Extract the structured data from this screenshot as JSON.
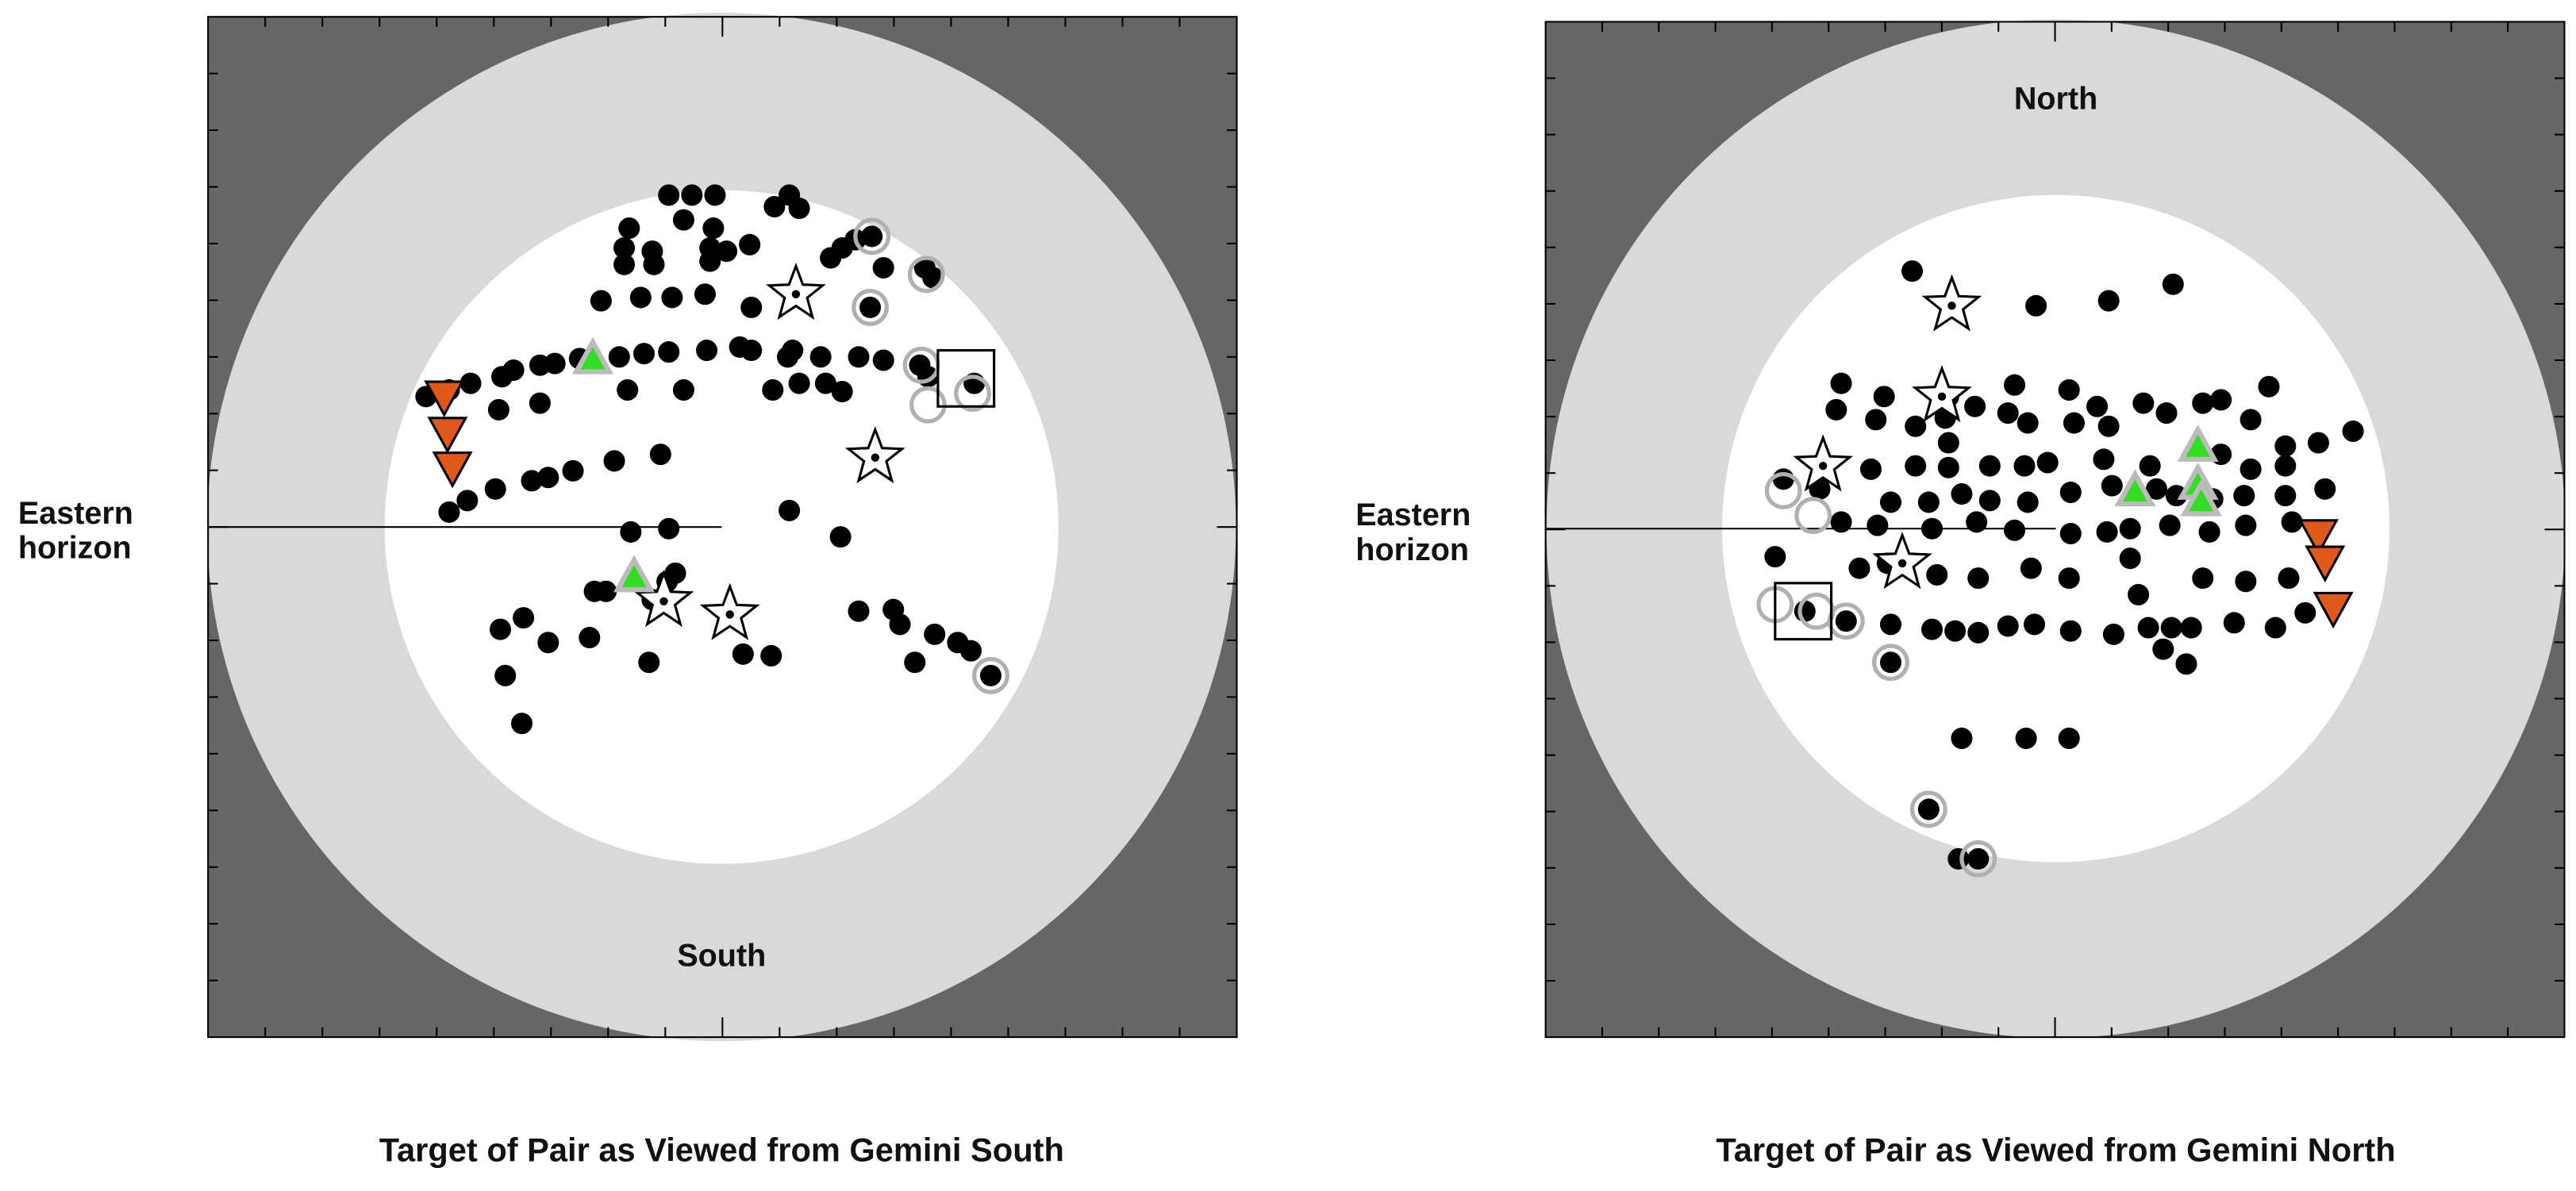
{
  "chart_data": [
    {
      "type": "scatter",
      "title": "Target of Pair as Viewed from Gemini South",
      "annotations": [
        "Eastern horizon",
        "South"
      ],
      "xlim": [
        -311,
        312
      ],
      "ylim": [
        -309,
        309
      ],
      "series": [
        {
          "marker": "dot",
          "color": "#000000",
          "x": [
            -32,
            -18,
            -4,
            41,
            47,
            -56,
            -23,
            -5,
            32,
            -59,
            -42,
            -7,
            3,
            17,
            -59,
            -41,
            -7,
            73,
            66,
            81,
            91,
            98,
            123,
            128,
            -73,
            -49,
            -30,
            -10,
            18,
            90,
            -179,
            -165,
            -152,
            -133,
            -126,
            -110,
            -101,
            -86,
            -62,
            -47,
            -32,
            -9,
            11,
            18,
            40,
            43,
            60,
            83,
            98,
            120,
            125,
            153,
            63,
            73,
            47,
            31,
            -23,
            -57,
            -135,
            -110,
            -165,
            -154,
            -137,
            -115,
            -105,
            -90,
            -65,
            -37,
            -55,
            -32,
            41,
            72,
            -77,
            -70,
            -42,
            -33,
            -28,
            -134,
            -120,
            -105,
            -80,
            -44,
            13,
            30,
            83,
            104,
            108,
            129,
            143,
            151,
            117,
            -131,
            -121,
            163
          ],
          "y": [
            201,
            201,
            201,
            201,
            193,
            181,
            186,
            181,
            194,
            169,
            167,
            169,
            167,
            171,
            159,
            159,
            161,
            169,
            163,
            174,
            176,
            157,
            157,
            151,
            137,
            139,
            139,
            141,
            133,
            133,
            79,
            83,
            87,
            91,
            95,
            98,
            99,
            102,
            103,
            105,
            106,
            107,
            109,
            107,
            103,
            107,
            103,
            103,
            101,
            98,
            91,
            87,
            87,
            82,
            87,
            83,
            83,
            83,
            71,
            75,
            9,
            16,
            23,
            28,
            30,
            34,
            40,
            44,
            -3,
            -1,
            10,
            -6,
            -39,
            -39,
            -44,
            -33,
            -28,
            -62,
            -55,
            -70,
            -67,
            -82,
            -77,
            -78,
            -51,
            -50,
            -59,
            -65,
            -70,
            -75,
            -82,
            -90,
            -119,
            -90
          ]
        },
        {
          "marker": "ring",
          "color": "#b0b0b0",
          "x": [
            91,
            90,
            124,
            121,
            125,
            152,
            163
          ],
          "y": [
            176,
            133,
            153,
            98,
            74,
            81,
            -90
          ]
        },
        {
          "marker": "star",
          "color": "#000000",
          "x": [
            45,
            93,
            -35,
            5
          ],
          "y": [
            141,
            42,
            -45,
            -53
          ]
        },
        {
          "marker": "triangle-up",
          "color": "#33dd22",
          "x": [
            -78,
            -53
          ],
          "y": [
            101,
            -31
          ]
        },
        {
          "marker": "triangle-down",
          "color": "#e0581a",
          "x": [
            -168,
            -166,
            -163
          ],
          "y": [
            79,
            57,
            36
          ]
        },
        {
          "marker": "square",
          "color": "#000000",
          "x": [
            148
          ],
          "y": [
            90
          ]
        }
      ]
    },
    {
      "type": "scatter",
      "title": "Target of Pair as Viewed from Gemini North",
      "annotations": [
        "Eastern horizon",
        "North"
      ],
      "xlim": [
        -309,
        308
      ],
      "ylim": [
        -308,
        307
      ],
      "series": [
        {
          "marker": "dot",
          "color": "#000000",
          "x": [
            -87,
            -12,
            32,
            71,
            -130,
            -104,
            -65,
            -25,
            8,
            25,
            53,
            89,
            100,
            129,
            -133,
            -109,
            -85,
            -67,
            -49,
            -29,
            -17,
            11,
            32,
            67,
            118,
            139,
            159,
            180,
            -65,
            -112,
            -85,
            -65,
            -40,
            -19,
            -5,
            29,
            57,
            100,
            118,
            139,
            -165,
            -143,
            -100,
            -77,
            -57,
            -40,
            -17,
            9,
            34,
            61,
            73,
            114,
            139,
            163,
            95,
            -130,
            -108,
            -75,
            -48,
            -25,
            9,
            31,
            45,
            69,
            93,
            115,
            143,
            -170,
            -119,
            -102,
            -72,
            -47,
            -15,
            8,
            45,
            89,
            115,
            141,
            -152,
            -127,
            -100,
            -75,
            -61,
            -47,
            -29,
            -13,
            9,
            35,
            50,
            56,
            70,
            82,
            108,
            133,
            151,
            65,
            79,
            -100,
            -57,
            -18,
            8,
            -77,
            -59,
            -47
          ],
          "y": [
            156,
            135,
            138,
            148,
            88,
            80,
            80,
            87,
            84,
            74,
            76,
            76,
            78,
            86,
            72,
            66,
            62,
            67,
            74,
            70,
            64,
            64,
            62,
            70,
            66,
            50,
            52,
            59,
            52,
            36,
            38,
            37,
            38,
            38,
            40,
            42,
            38,
            45,
            36,
            38,
            30,
            24,
            16,
            16,
            21,
            17,
            16,
            22,
            26,
            24,
            20,
            20,
            20,
            24,
            18,
            4,
            2,
            0,
            4,
            -1,
            -3,
            -2,
            0,
            2,
            -2,
            2,
            4,
            -17,
            -24,
            -21,
            -28,
            -30,
            -24,
            -30,
            -18,
            -30,
            -32,
            -30,
            -50,
            -56,
            -58,
            -61,
            -62,
            -63,
            -59,
            -58,
            -62,
            -64,
            -40,
            -60,
            -60,
            -60,
            -57,
            -60,
            -51,
            -73,
            -82,
            -81,
            -127,
            -127,
            -127,
            -170,
            -200,
            -200
          ]
        },
        {
          "marker": "ring",
          "color": "#b0b0b0",
          "x": [
            -165,
            -147,
            -170,
            -145,
            -127,
            -100,
            -77,
            -47
          ],
          "y": [
            23,
            8,
            -46,
            -50,
            -56,
            -81,
            -170,
            -200
          ]
        },
        {
          "marker": "star",
          "color": "#000000",
          "x": [
            -63,
            -69,
            -141,
            -93
          ],
          "y": [
            135,
            80,
            38,
            -21
          ]
        },
        {
          "marker": "triangle-up",
          "color": "#33dd22",
          "x": [
            48,
            86,
            86,
            88
          ],
          "y": [
            22,
            49,
            26,
            16
          ]
        },
        {
          "marker": "triangle-down",
          "color": "#e0581a",
          "x": [
            159,
            163,
            168
          ],
          "y": [
            -4,
            -20,
            -48
          ]
        },
        {
          "marker": "square",
          "color": "#000000",
          "x": [
            -153
          ],
          "y": [
            -50
          ]
        }
      ]
    }
  ]
}
